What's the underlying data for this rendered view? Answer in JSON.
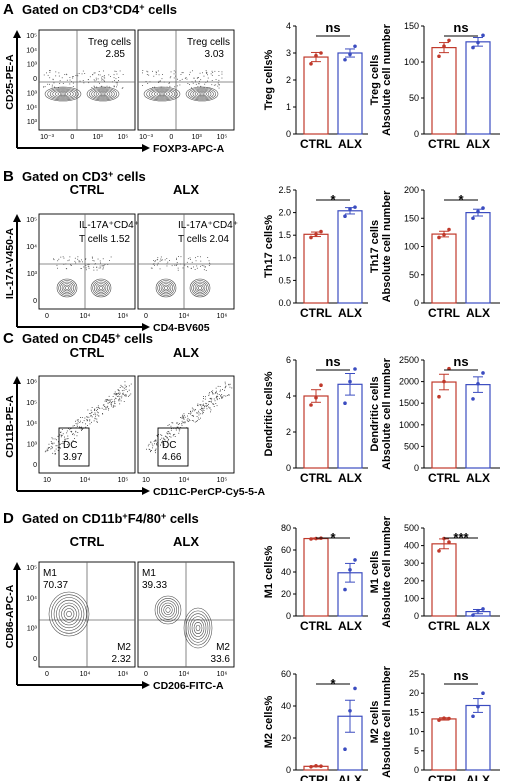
{
  "rows": [
    {
      "label": "A",
      "title_pre": "Gated on CD3",
      "title_sup1": "+",
      "title_mid": "CD4",
      "title_sup2": "+",
      "title_post": " cells",
      "groups": [
        "",
        ""
      ],
      "xaxis": "FOXP3-APC-A",
      "yaxis": "CD25-PE-A",
      "gate_label": [
        "Treg cells",
        "Treg cells"
      ],
      "gate_value": [
        "2.85",
        "3.03"
      ],
      "xticks": [
        "10⁻³",
        "0",
        "10³",
        "10⁵"
      ],
      "yticks": [
        "10⁵",
        "10⁴",
        "10³",
        "0",
        "10³",
        "10⁴",
        "10³"
      ]
    },
    {
      "label": "B",
      "title_pre": "Gated on CD3",
      "title_sup1": "+",
      "title_mid": "",
      "title_sup2": "",
      "title_post": " cells",
      "groups": [
        "CTRL",
        "ALX"
      ],
      "xaxis": "CD4-BV605",
      "yaxis": "IL-17A-V450-A",
      "gate_label": [
        "IL-17A⁺CD4⁺",
        "IL-17A⁺CD4⁺"
      ],
      "gate_value": [
        "T cells  1.52",
        "T cells  2.04"
      ],
      "xticks": [
        "0",
        "10⁴",
        "10⁶"
      ],
      "yticks": [
        "10⁵",
        "10⁴",
        "10³",
        "0"
      ]
    },
    {
      "label": "C",
      "title_pre": "Gated on CD45",
      "title_sup1": "+",
      "title_mid": "",
      "title_sup2": "",
      "title_post": " cells",
      "groups": [
        "CTRL",
        "ALX"
      ],
      "xaxis": "CD11C-PerCP-Cy5-5-A",
      "yaxis": "CD11B-PE-A",
      "gate_label": [
        "DC",
        "DC"
      ],
      "gate_value": [
        "3.97",
        "4.66"
      ],
      "xticks": [
        "10",
        "10⁴",
        "10⁵"
      ],
      "yticks": [
        "10⁶",
        "10⁵",
        "10⁴",
        "10³",
        "0"
      ]
    },
    {
      "label": "D",
      "title_pre": "Gated on CD11b",
      "title_sup1": "+",
      "title_mid": "F4/80",
      "title_sup2": "+",
      "title_post": " cells",
      "groups": [
        "CTRL",
        "ALX"
      ],
      "xaxis": "CD206-FITC-A",
      "yaxis": "CD86-APC-A",
      "gate_m1": [
        "M1",
        "M1"
      ],
      "gate_m1_value": [
        "70.37",
        "39.33"
      ],
      "gate_m2": [
        "M2",
        "M2"
      ],
      "gate_m2_value": [
        "2.32",
        "33.6"
      ],
      "xticks": [
        "0",
        "10⁴",
        "10⁶"
      ],
      "yticks": [
        "10⁵",
        "10⁴",
        "10³",
        "0"
      ]
    }
  ],
  "legend_groups": [
    "CTRL",
    "ALX"
  ],
  "colors": {
    "ctrl": "#c0392b",
    "alx": "#3b4cc0",
    "axis": "#000000"
  },
  "chart_data": [
    {
      "type": "bar",
      "panel": "A",
      "categories": [
        "CTRL",
        "ALX"
      ],
      "values": [
        2.85,
        3.0
      ],
      "errors": [
        0.17,
        0.15
      ],
      "points": [
        [
          2.6,
          3.0,
          2.9
        ],
        [
          2.75,
          3.25,
          2.95
        ]
      ],
      "ylabel": [
        "Treg cells%"
      ],
      "ylim": [
        0,
        4
      ],
      "yticks": [
        "0",
        "1",
        "2",
        "3",
        "4"
      ],
      "significance": "ns"
    },
    {
      "type": "bar",
      "panel": "A",
      "categories": [
        "CTRL",
        "ALX"
      ],
      "values": [
        120,
        128
      ],
      "errors": [
        7,
        6
      ],
      "points": [
        [
          108,
          130,
          122
        ],
        [
          120,
          137,
          127
        ]
      ],
      "ylabel": [
        "Treg cells",
        "Absolute cell number"
      ],
      "ylim": [
        0,
        150
      ],
      "yticks": [
        "0",
        "50",
        "100",
        "150"
      ],
      "significance": "ns"
    },
    {
      "type": "bar",
      "panel": "B",
      "categories": [
        "CTRL",
        "ALX"
      ],
      "values": [
        1.52,
        2.04
      ],
      "errors": [
        0.05,
        0.07
      ],
      "points": [
        [
          1.45,
          1.58,
          1.52
        ],
        [
          1.92,
          2.12,
          2.08
        ]
      ],
      "ylabel": [
        "Th17 cells%"
      ],
      "ylim": [
        0,
        2.5
      ],
      "yticks": [
        "0.0",
        "0.5",
        "1.0",
        "1.5",
        "2.0",
        "2.5"
      ],
      "significance": "*"
    },
    {
      "type": "bar",
      "panel": "B",
      "categories": [
        "CTRL",
        "ALX"
      ],
      "values": [
        122,
        160
      ],
      "errors": [
        5,
        6
      ],
      "points": [
        [
          116,
          130,
          121
        ],
        [
          150,
          168,
          162
        ]
      ],
      "ylabel": [
        "Th17 cells",
        "Absolute cell number"
      ],
      "ylim": [
        0,
        200
      ],
      "yticks": [
        "0",
        "50",
        "100",
        "150",
        "200"
      ],
      "significance": "*"
    },
    {
      "type": "bar",
      "panel": "C",
      "categories": [
        "CTRL",
        "ALX"
      ],
      "values": [
        4.0,
        4.65
      ],
      "errors": [
        0.35,
        0.6
      ],
      "points": [
        [
          3.5,
          4.6,
          3.9
        ],
        [
          3.6,
          5.5,
          4.8
        ]
      ],
      "ylabel": [
        "Dendritic cells%"
      ],
      "ylim": [
        0,
        6
      ],
      "yticks": [
        "0",
        "2",
        "4",
        "6"
      ],
      "significance": "ns"
    },
    {
      "type": "bar",
      "panel": "C",
      "categories": [
        "CTRL",
        "ALX"
      ],
      "values": [
        1990,
        1930
      ],
      "errors": [
        180,
        180
      ],
      "points": [
        [
          1650,
          2300,
          2000
        ],
        [
          1600,
          2200,
          1950
        ]
      ],
      "ylabel": [
        "Dendritic cells",
        "Absolute cell number"
      ],
      "ylim": [
        0,
        2500
      ],
      "yticks": [
        "0",
        "500",
        "1000",
        "1500",
        "2000",
        "2500"
      ],
      "significance": "ns"
    },
    {
      "type": "bar",
      "panel": "D",
      "categories": [
        "CTRL",
        "ALX"
      ],
      "values": [
        70.4,
        39.3
      ],
      "errors": [
        0.5,
        8.5
      ],
      "points": [
        [
          70.0,
          70.8,
          70.4
        ],
        [
          24,
          51,
          42
        ]
      ],
      "ylabel": [
        "M1 cells%"
      ],
      "ylim": [
        0,
        80
      ],
      "yticks": [
        "0",
        "20",
        "40",
        "60",
        "80"
      ],
      "significance": "*"
    },
    {
      "type": "bar",
      "panel": "D",
      "categories": [
        "CTRL",
        "ALX"
      ],
      "values": [
        410,
        25
      ],
      "errors": [
        28,
        12
      ],
      "points": [
        [
          370,
          420,
          440
        ],
        [
          5,
          40,
          30
        ]
      ],
      "ylabel": [
        "M1 cells",
        "Absolute cell number"
      ],
      "ylim": [
        0,
        500
      ],
      "yticks": [
        "0",
        "100",
        "200",
        "300",
        "400",
        "500"
      ],
      "significance": "***"
    },
    {
      "type": "bar",
      "panel": "D",
      "categories": [
        "CTRL",
        "ALX"
      ],
      "values": [
        2.3,
        33.6
      ],
      "errors": [
        0.3,
        10
      ],
      "points": [
        [
          2.0,
          2.4,
          2.6
        ],
        [
          13,
          51,
          37
        ]
      ],
      "ylabel": [
        "M2 cells%"
      ],
      "ylim": [
        0,
        60
      ],
      "yticks": [
        "0",
        "20",
        "40",
        "60"
      ],
      "significance": "*"
    },
    {
      "type": "bar",
      "panel": "D",
      "categories": [
        "CTRL",
        "ALX"
      ],
      "values": [
        13.3,
        16.8
      ],
      "errors": [
        0.3,
        1.8
      ],
      "points": [
        [
          13.0,
          13.4,
          13.5
        ],
        [
          14.0,
          20.0,
          16.5
        ]
      ],
      "ylabel": [
        "M2 cells",
        "Absolute cell number"
      ],
      "ylim": [
        0,
        25
      ],
      "yticks": [
        "0",
        "5",
        "10",
        "15",
        "20",
        "25"
      ],
      "significance": "ns"
    }
  ]
}
